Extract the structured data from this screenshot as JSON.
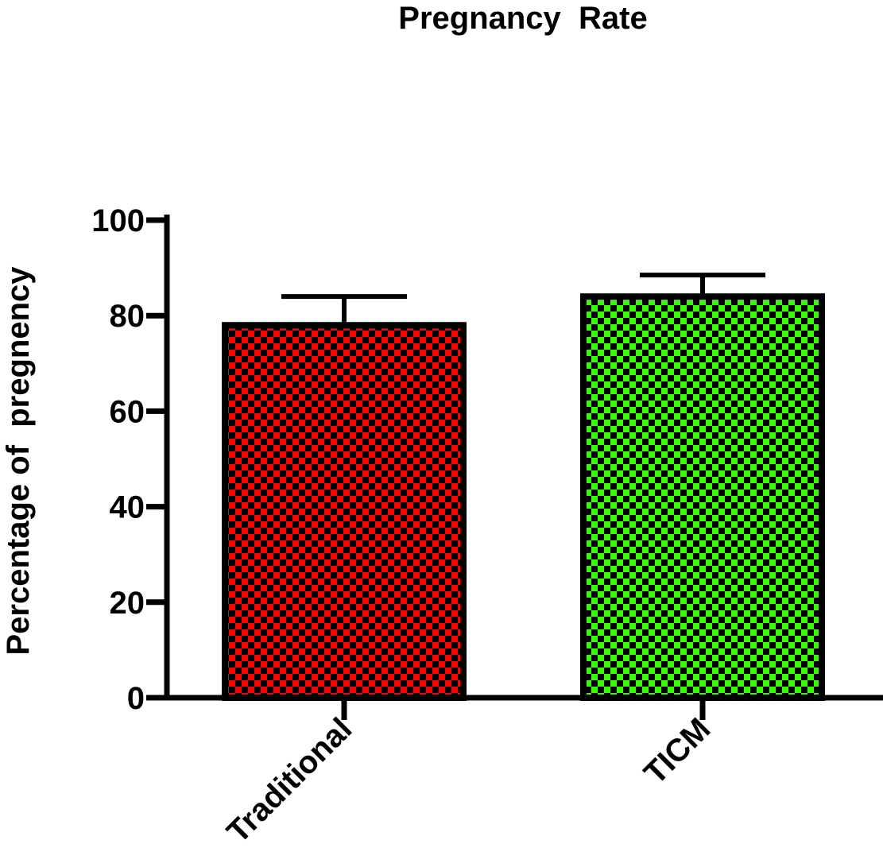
{
  "chart_data": {
    "type": "bar",
    "title": "Pregnancy  Rate",
    "xlabel": "",
    "ylabel": "Percentage of  pregnency",
    "categories": [
      "Traditional",
      "TICM"
    ],
    "values": [
      78,
      84
    ],
    "error_upper": [
      6,
      4.5
    ],
    "ylim": [
      0,
      100
    ],
    "yticks": [
      0,
      20,
      40,
      60,
      80,
      100
    ],
    "ytick_labels": [
      "0",
      "20",
      "40",
      "60",
      "80",
      "100"
    ],
    "grid": false,
    "legend": "none",
    "bar_colors": [
      "#ff0000",
      "#33ff00"
    ],
    "pattern_color": "#000000"
  }
}
